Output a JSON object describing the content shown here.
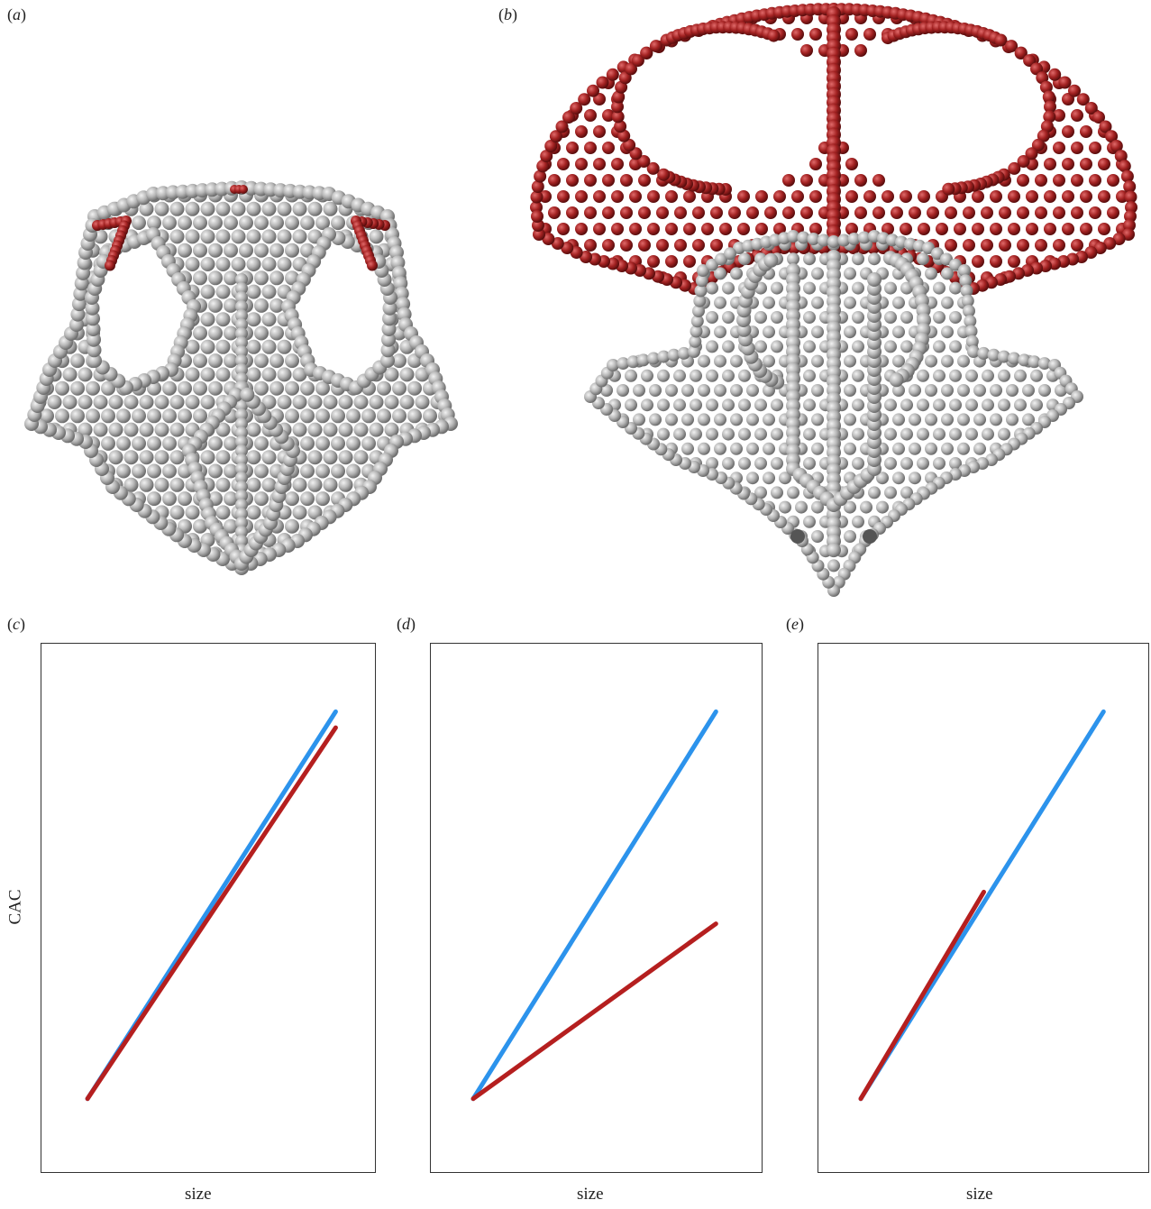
{
  "panels": {
    "a": {
      "label": "(a)",
      "letter": "a"
    },
    "b": {
      "label": "(b)",
      "letter": "b"
    },
    "c": {
      "label": "(c)",
      "letter": "c"
    },
    "d": {
      "label": "(d)",
      "letter": "d"
    },
    "e": {
      "label": "(e)",
      "letter": "e"
    }
  },
  "colors": {
    "sphere_grey": "#b9b9b9",
    "sphere_red": "#a32222",
    "line_blue": "#2c93ec",
    "line_red": "#b51f1f",
    "frame": "#333333"
  },
  "chart_data": [
    {
      "type": "line",
      "panel": "c",
      "xlabel": "size",
      "ylabel": "CAC",
      "xlim": [
        0,
        1
      ],
      "ylim": [
        0,
        1
      ],
      "grid": false,
      "series": [
        {
          "color": "#2c93ec",
          "x": [
            0.14,
            0.88
          ],
          "y": [
            0.14,
            0.87
          ]
        },
        {
          "color": "#b51f1f",
          "x": [
            0.14,
            0.88
          ],
          "y": [
            0.14,
            0.84
          ]
        }
      ]
    },
    {
      "type": "line",
      "panel": "d",
      "xlabel": "size",
      "ylabel": "",
      "xlim": [
        0,
        1
      ],
      "ylim": [
        0,
        1
      ],
      "grid": false,
      "series": [
        {
          "color": "#2c93ec",
          "x": [
            0.13,
            0.86
          ],
          "y": [
            0.14,
            0.87
          ]
        },
        {
          "color": "#b51f1f",
          "x": [
            0.13,
            0.86
          ],
          "y": [
            0.14,
            0.47
          ]
        }
      ]
    },
    {
      "type": "line",
      "panel": "e",
      "xlabel": "size",
      "ylabel": "",
      "xlim": [
        0,
        1
      ],
      "ylim": [
        0,
        1
      ],
      "grid": false,
      "series": [
        {
          "color": "#2c93ec",
          "x": [
            0.13,
            0.86
          ],
          "y": [
            0.14,
            0.87
          ]
        },
        {
          "color": "#b51f1f",
          "x": [
            0.13,
            0.5
          ],
          "y": [
            0.14,
            0.53
          ]
        }
      ]
    }
  ]
}
